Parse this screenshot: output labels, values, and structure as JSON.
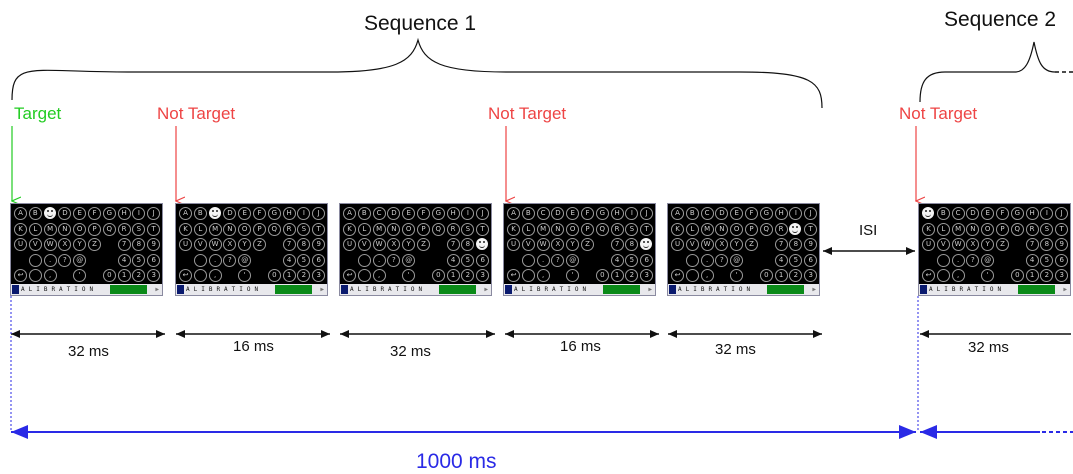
{
  "sequences": [
    {
      "label": "Sequence 1"
    },
    {
      "label": "Sequence 2"
    }
  ],
  "stimuli": [
    {
      "label": "Target",
      "color": "#22cc22",
      "face_cell": 2
    },
    {
      "label": "Not Target",
      "color": "#ee4444",
      "face_cell": 2
    },
    {
      "label": "",
      "color": "",
      "face_cell": 29
    },
    {
      "label": "Not Target",
      "color": "#ee4444",
      "face_cell": 29
    },
    {
      "label": "",
      "color": "",
      "face_cell": 18
    },
    {
      "label": "Not Target",
      "color": "#ee4444",
      "face_cell": 0
    }
  ],
  "durations": [
    "32 ms",
    "16 ms",
    "32 ms",
    "16 ms",
    "32 ms",
    "32 ms"
  ],
  "isi_label": "ISI",
  "total_label": "1000 ms",
  "calibration_text": "ALIBRATION",
  "speller_cells": [
    "A",
    "B",
    "C",
    "D",
    "E",
    "F",
    "G",
    "H",
    "I",
    "J",
    "K",
    "L",
    "M",
    "N",
    "O",
    "P",
    "Q",
    "R",
    "S",
    "T",
    "U",
    "V",
    "W",
    "X",
    "Y",
    "Z",
    "",
    "7",
    "8",
    "9",
    "",
    "",
    ".",
    "?",
    "@",
    "",
    "",
    "4",
    "5",
    "6",
    "↩",
    "",
    ",",
    "",
    "'",
    "",
    "0",
    "1",
    "2",
    "3"
  ],
  "colors": {
    "target": "#22cc22",
    "not_target": "#ee4444",
    "timeline": "#2a2ae6"
  }
}
